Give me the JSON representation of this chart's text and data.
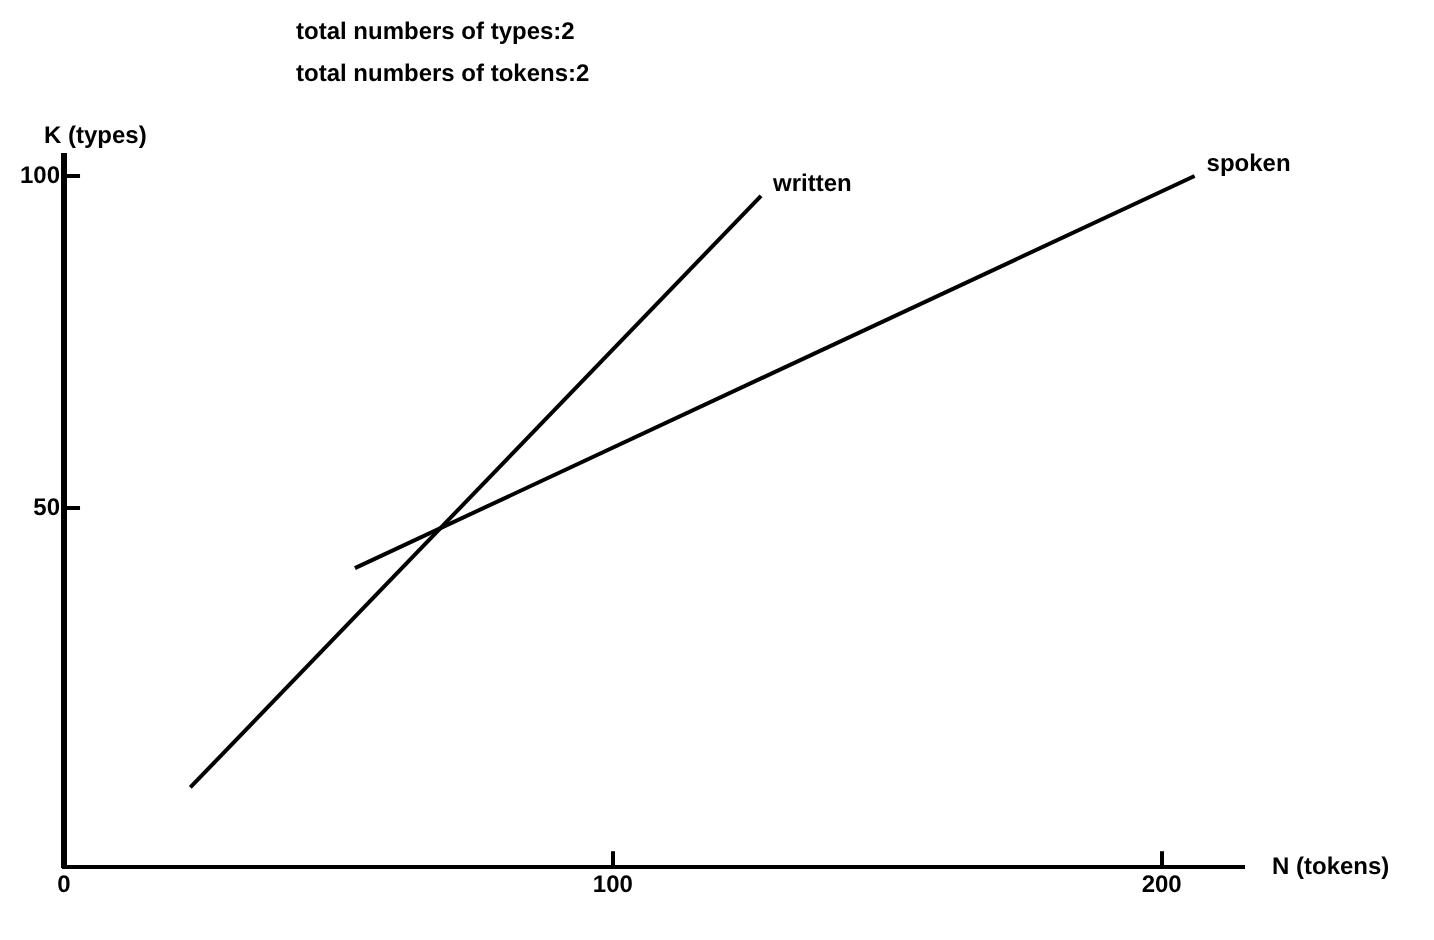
{
  "chart_data": {
    "type": "line",
    "title": "total numbers of types:2",
    "subtitle": "total numbers of tokens:2",
    "xlabel": "N (tokens)",
    "ylabel": "K (types)",
    "xlim": [
      0,
      215
    ],
    "xticks": [
      0,
      100,
      200
    ],
    "ylim": [
      -4,
      103
    ],
    "yticks": [
      50,
      100
    ],
    "grid": false,
    "legend": false,
    "marker": "none",
    "line_style": "solid",
    "series": [
      {
        "name": "written",
        "color": "#000000",
        "x": [
          23,
          127
        ],
        "values": [
          8,
          97
        ]
      },
      {
        "name": "spoken",
        "color": "#000000",
        "x": [
          53,
          206
        ],
        "values": [
          41,
          100
        ]
      }
    ]
  }
}
